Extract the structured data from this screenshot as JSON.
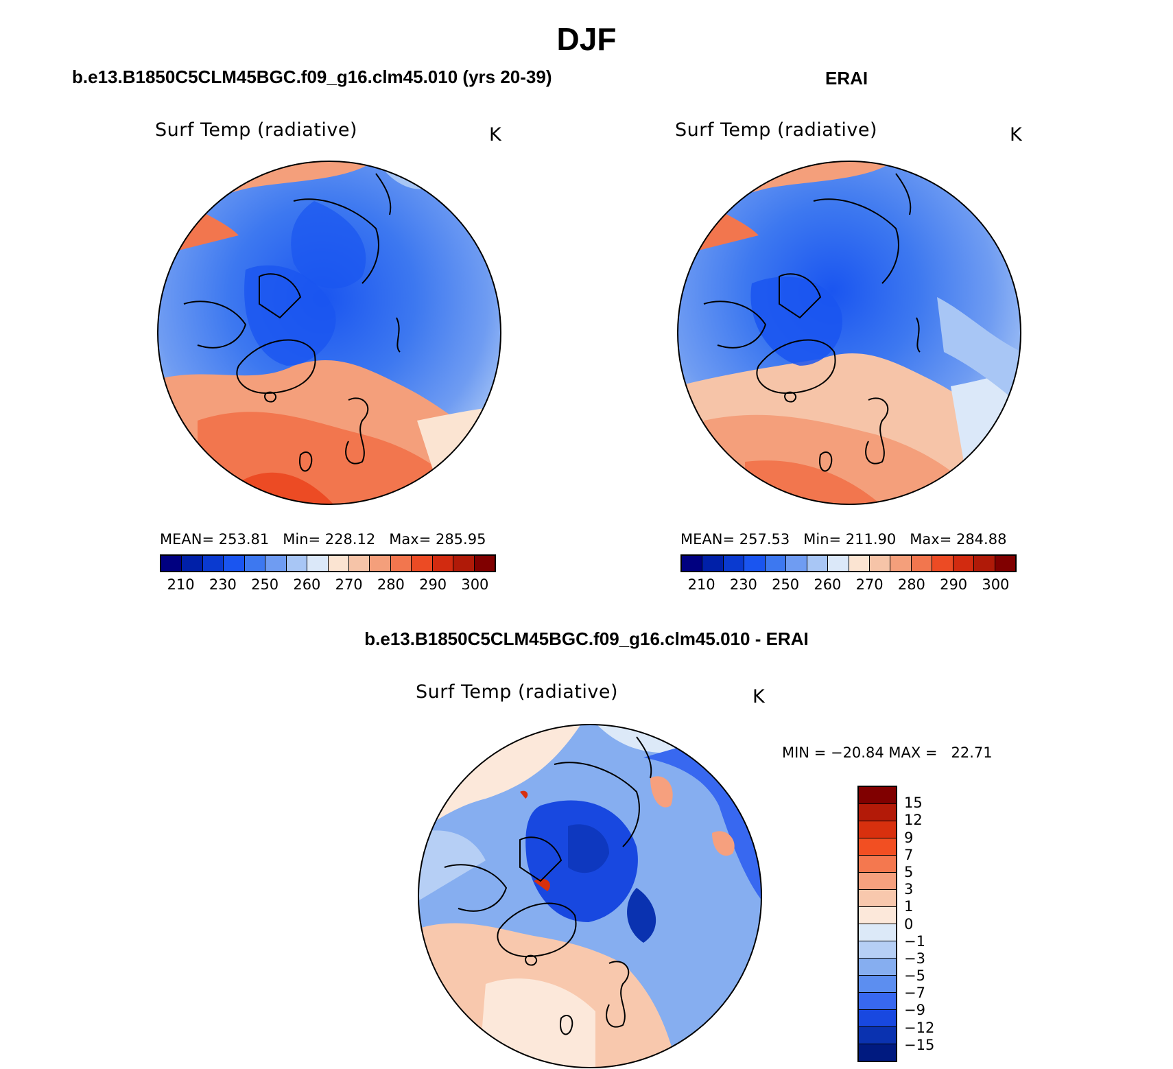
{
  "figure": {
    "season": "DJF",
    "field_label": "Surf Temp (radiative)",
    "unit": "K"
  },
  "panels": {
    "model": {
      "title": "b.e13.B1850C5CLM45BGC.f09_g16.clm45.010 (yrs 20-39)",
      "stats": "MEAN= 253.81   Min= 228.12   Max= 285.95"
    },
    "obs": {
      "title": "ERAI",
      "stats": "MEAN= 257.53   Min= 211.90   Max= 284.88"
    },
    "diff": {
      "title": "b.e13.B1850C5CLM45BGC.f09_g16.clm45.010 - ERAI",
      "stats": "MIN = −20.84 MAX =   22.71"
    }
  },
  "abs_colorbar": {
    "colors": [
      "#000080",
      "#0020a8",
      "#0a3ad0",
      "#1a55f0",
      "#3d78f0",
      "#6f9cf2",
      "#a8c6f5",
      "#dbe8f9",
      "#fbe4d2",
      "#f6c4a8",
      "#f49f7b",
      "#f2764e",
      "#ec4b24",
      "#d22b10",
      "#b01a08",
      "#800000"
    ],
    "labels": [
      "210",
      "230",
      "250",
      "260",
      "270",
      "280",
      "290",
      "300"
    ]
  },
  "diff_colorbar": {
    "colors": [
      "#800000",
      "#b31a08",
      "#d8300e",
      "#f24f22",
      "#f4784f",
      "#f6a07e",
      "#f8c8ad",
      "#fce8da",
      "#dce9f8",
      "#b6cff5",
      "#86aef0",
      "#5c8ef0",
      "#3868f0",
      "#1848e0",
      "#0a32b0",
      "#001a80"
    ],
    "labels": [
      "15",
      "12",
      "9",
      "7",
      "5",
      "3",
      "1",
      "0",
      "−1",
      "−3",
      "−5",
      "−7",
      "−9",
      "−12",
      "−15"
    ]
  }
}
